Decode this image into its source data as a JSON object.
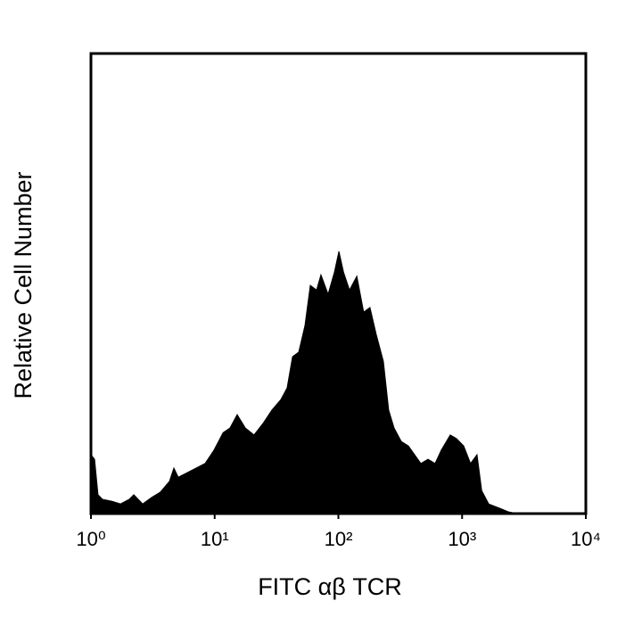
{
  "chart_data": {
    "type": "area",
    "xlabel": "FITC αβ TCR",
    "ylabel": "Relative Cell Number",
    "xscale": "log",
    "xlim": [
      1,
      10000
    ],
    "ylim": [
      0,
      100
    ],
    "xticks": [
      {
        "value": 1,
        "label": "10⁰"
      },
      {
        "value": 10,
        "label": "10¹"
      },
      {
        "value": 100,
        "label": "10²"
      },
      {
        "value": 1000,
        "label": "10³"
      },
      {
        "value": 10000,
        "label": "10⁴"
      }
    ],
    "color": "#000000",
    "x": [
      1,
      1.07,
      1.14,
      1.24,
      1.47,
      1.73,
      2.04,
      2.22,
      2.62,
      3.09,
      3.65,
      4.31,
      4.68,
      5.08,
      6.0,
      7.08,
      8.37,
      9.88,
      11.7,
      13.3,
      15.2,
      17.7,
      20.8,
      24.6,
      29.0,
      34.3,
      38.5,
      42.6,
      47.8,
      53.7,
      59.3,
      66.6,
      72.3,
      82.6,
      92.9,
      101,
      110,
      123,
      141,
      160,
      180,
      202,
      231,
      255,
      282,
      322,
      368,
      413,
      464,
      530,
      605,
      679,
      802,
      901,
      1030,
      1170,
      1320,
      1440,
      1640,
      2000,
      2360,
      2790,
      10000
    ],
    "values": [
      12.8,
      11.8,
      4.1,
      3.1,
      2.7,
      2.1,
      3.1,
      4.1,
      2.1,
      3.5,
      4.7,
      7.0,
      9.9,
      7.9,
      8.9,
      9.9,
      10.9,
      13.8,
      17.6,
      18.6,
      21.5,
      18.6,
      17.1,
      19.6,
      22.5,
      24.8,
      27.3,
      34.1,
      35.1,
      40.9,
      49.6,
      48.6,
      51.9,
      47.7,
      52.5,
      57.0,
      52.5,
      48.6,
      51.6,
      43.8,
      44.8,
      39.0,
      33.1,
      22.5,
      18.6,
      15.7,
      14.7,
      12.8,
      10.9,
      11.8,
      10.9,
      13.8,
      17.1,
      16.3,
      14.7,
      10.9,
      12.8,
      5.0,
      2.1,
      1.2,
      0.4,
      0,
      0
    ]
  }
}
